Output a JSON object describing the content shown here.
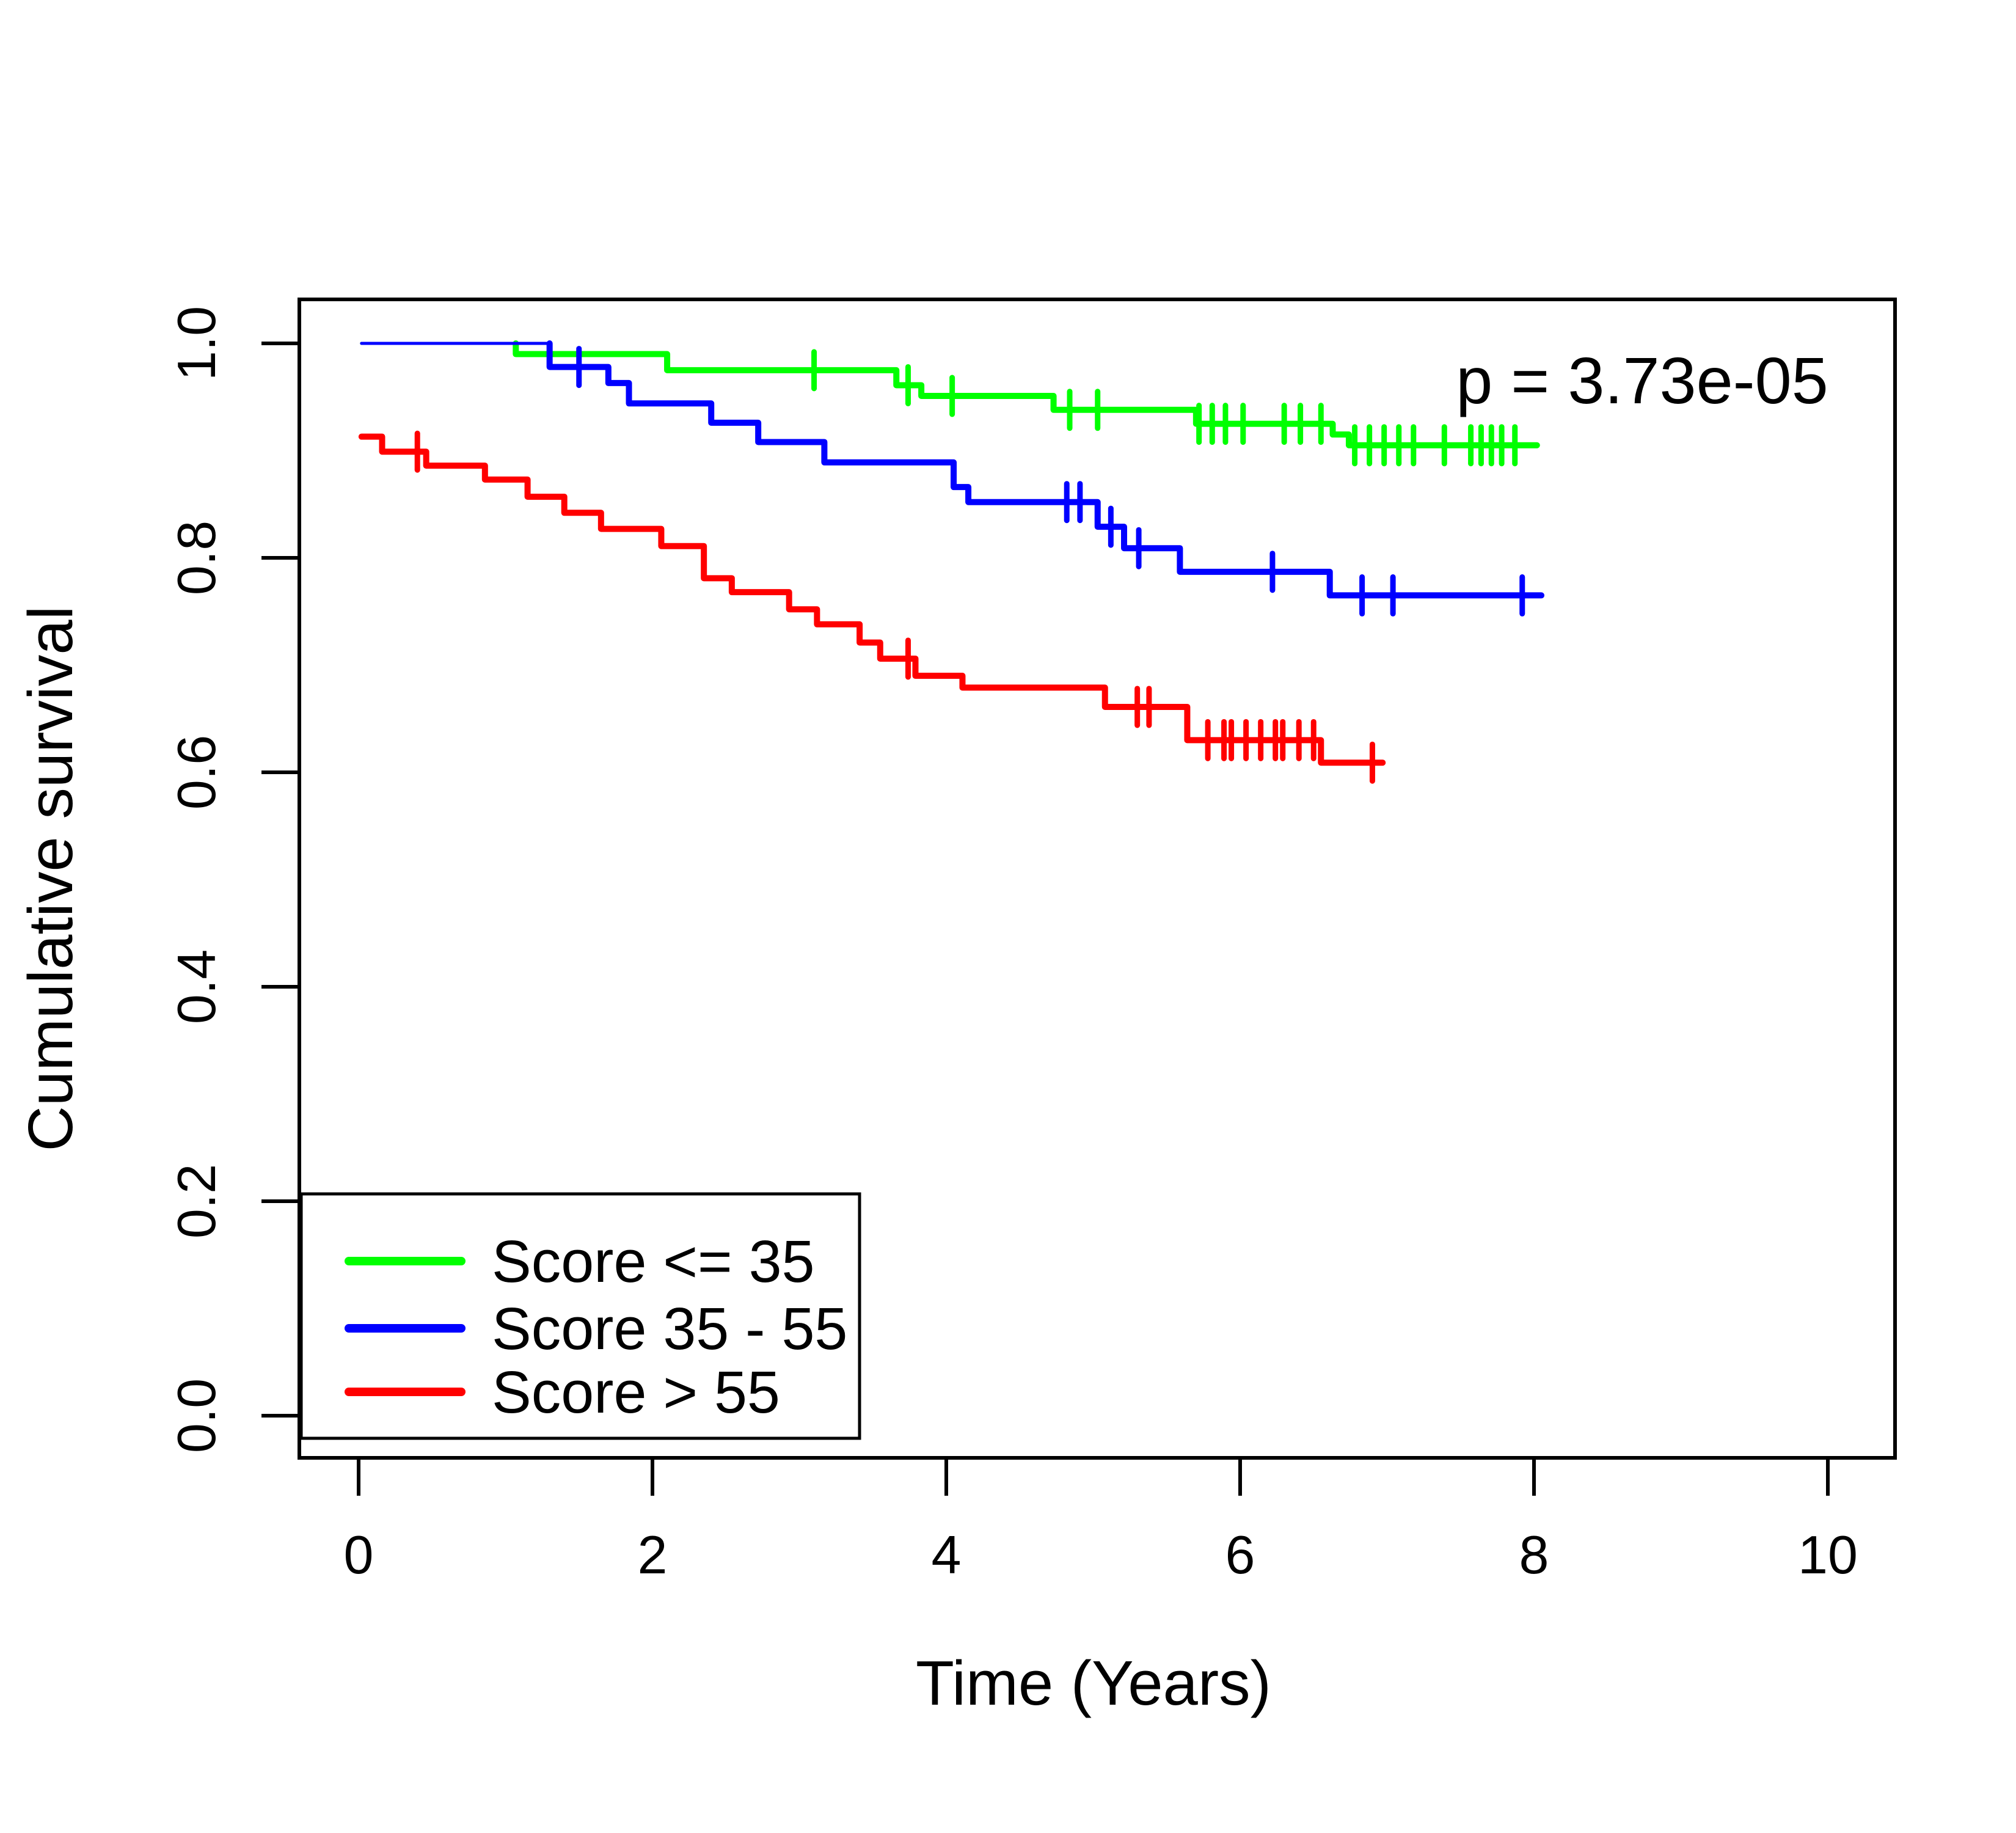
{
  "chart_data": {
    "type": "line",
    "subtype": "kaplan-meier-step",
    "title": "",
    "xlabel": "Time (Years)",
    "ylabel": "Cumulative survival",
    "annotation": "p = 3.73e-05",
    "xlim": [
      0,
      10.6
    ],
    "ylim": [
      0,
      1.0
    ],
    "x_ticks": [
      0,
      2,
      4,
      6,
      8,
      10
    ],
    "x_tick_labels": [
      "0",
      "2",
      "4",
      "6",
      "8",
      "10"
    ],
    "y_ticks": [
      0.0,
      0.2,
      0.4,
      0.6,
      0.8,
      1.0
    ],
    "y_tick_labels": [
      "0.0",
      "0.2",
      "0.4",
      "0.6",
      "0.8",
      "1.0"
    ],
    "grid": false,
    "legend_position": "bottom-left",
    "axis_color": "#000000",
    "background_color": "#ffffff",
    "series": [
      {
        "name": "Score <= 35",
        "color": "#00ff00",
        "steps": [
          [
            0.02,
            1.0
          ],
          [
            1.07,
            0.99
          ],
          [
            2.1,
            0.975
          ],
          [
            3.66,
            0.961
          ],
          [
            3.83,
            0.951
          ],
          [
            4.73,
            0.938
          ],
          [
            5.7,
            0.925
          ],
          [
            6.63,
            0.915
          ],
          [
            6.74,
            0.905
          ]
        ],
        "end_time": 8.02,
        "thin_lead_until": 1.07,
        "censor_times": [
          3.1,
          3.74,
          4.04,
          4.84,
          5.03,
          5.72,
          5.81,
          5.9,
          6.02,
          6.3,
          6.41,
          6.55,
          6.78,
          6.88,
          6.98,
          7.08,
          7.18,
          7.39,
          7.57,
          7.64,
          7.71,
          7.78,
          7.87
        ]
      },
      {
        "name": "Score 35 - 55",
        "color": "#0000ff",
        "steps": [
          [
            0.02,
            1.0
          ],
          [
            1.3,
            0.978
          ],
          [
            1.7,
            0.963
          ],
          [
            1.84,
            0.944
          ],
          [
            2.4,
            0.926
          ],
          [
            2.72,
            0.908
          ],
          [
            3.17,
            0.889
          ],
          [
            4.05,
            0.866
          ],
          [
            4.15,
            0.852
          ],
          [
            5.03,
            0.829
          ],
          [
            5.21,
            0.809
          ],
          [
            5.59,
            0.787
          ],
          [
            6.61,
            0.765
          ]
        ],
        "end_time": 8.05,
        "thin_lead_until": 1.3,
        "censor_times": [
          1.5,
          4.82,
          4.91,
          5.12,
          5.31,
          6.22,
          6.83,
          7.04,
          7.92
        ]
      },
      {
        "name": "Score > 55",
        "color": "#ff0000",
        "steps": [
          [
            0.02,
            0.913
          ],
          [
            0.16,
            0.899
          ],
          [
            0.46,
            0.886
          ],
          [
            0.86,
            0.873
          ],
          [
            1.15,
            0.857
          ],
          [
            1.4,
            0.842
          ],
          [
            1.65,
            0.827
          ],
          [
            2.06,
            0.811
          ],
          [
            2.35,
            0.781
          ],
          [
            2.54,
            0.768
          ],
          [
            2.93,
            0.752
          ],
          [
            3.12,
            0.738
          ],
          [
            3.41,
            0.721
          ],
          [
            3.55,
            0.706
          ],
          [
            3.79,
            0.69
          ],
          [
            4.11,
            0.679
          ],
          [
            5.08,
            0.661
          ],
          [
            5.64,
            0.63
          ],
          [
            6.55,
            0.609
          ]
        ],
        "end_time": 6.97,
        "thin_lead_until": null,
        "censor_times": [
          0.4,
          3.74,
          5.3,
          5.38,
          5.78,
          5.89,
          5.94,
          6.04,
          6.14,
          6.24,
          6.29,
          6.4,
          6.5,
          6.9
        ]
      }
    ],
    "legend_entries": [
      "Score <= 35",
      "Score 35 - 55",
      "Score > 55"
    ]
  }
}
